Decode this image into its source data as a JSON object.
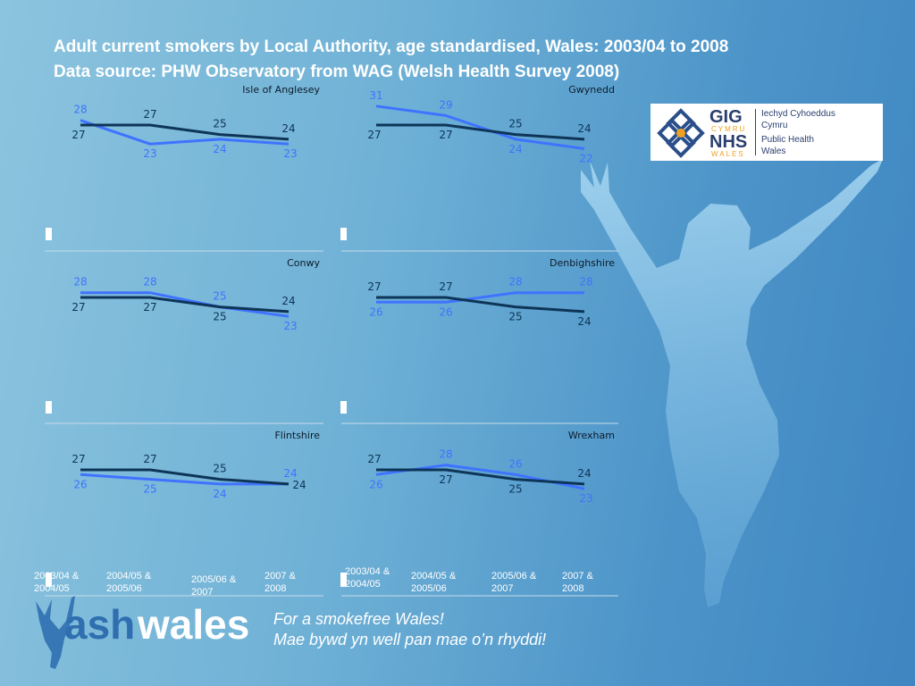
{
  "title_line1": "Adult current smokers by Local Authority, age standardised, Wales: 2003/04 to 2008",
  "title_line2": "Data source: PHW Observatory from WAG (Welsh Health Survey 2008)",
  "logo": {
    "gig": "GIG",
    "cymru": "CYMRU",
    "nhs": "NHS",
    "wales": "WALES",
    "line1": "Iechyd Cyhoeddus",
    "line2": "Cymru",
    "line3": "Public Health",
    "line4": "Wales"
  },
  "colors": {
    "series_a": "#3f73ff",
    "series_b": "#0e3557",
    "axis": "#c8dcea"
  },
  "x_labels_left": [
    [
      "2003/04 &",
      "2004/05"
    ],
    [
      "2004/05 &",
      "2005/06"
    ],
    [
      "2005/06 &",
      "2007"
    ],
    [
      "2007 &",
      "2008"
    ]
  ],
  "x_labels_right": [
    [
      "2003/04 &",
      "2004/05"
    ],
    [
      "2004/05 &",
      "2005/06"
    ],
    [
      "2005/06 &",
      "2007"
    ],
    [
      "2007 &",
      "2008"
    ]
  ],
  "brand": {
    "ash": "ash",
    "wales": "wales"
  },
  "tagline1": "For a smokefree Wales!",
  "tagline2": "Mae bywd yn well pan mae o’n rhyddi!",
  "chart_data": [
    {
      "type": "line",
      "title": "Isle of Anglesey",
      "categories": [
        "2003/04 & 2004/05",
        "2004/05 & 2005/06",
        "2005/06 & 2007",
        "2007 & 2008"
      ],
      "series": [
        {
          "values": [
            28,
            23,
            24,
            23
          ]
        },
        {
          "values": [
            27,
            27,
            25,
            24
          ]
        }
      ]
    },
    {
      "type": "line",
      "title": "Gwynedd",
      "categories": [
        "2003/04 & 2004/05",
        "2004/05 & 2005/06",
        "2005/06 & 2007",
        "2007 & 2008"
      ],
      "series": [
        {
          "values": [
            31,
            29,
            24,
            22
          ]
        },
        {
          "values": [
            27,
            27,
            25,
            24
          ]
        }
      ]
    },
    {
      "type": "line",
      "title": "Conwy",
      "categories": [
        "2003/04 & 2004/05",
        "2004/05 & 2005/06",
        "2005/06 & 2007",
        "2007 & 2008"
      ],
      "series": [
        {
          "values": [
            28,
            28,
            25,
            23
          ]
        },
        {
          "values": [
            27,
            27,
            25,
            24
          ]
        }
      ]
    },
    {
      "type": "line",
      "title": "Denbighshire",
      "categories": [
        "2003/04 & 2004/05",
        "2004/05 & 2005/06",
        "2005/06 & 2007",
        "2007 & 2008"
      ],
      "series": [
        {
          "values": [
            26,
            26,
            28,
            28
          ]
        },
        {
          "values": [
            27,
            27,
            25,
            24
          ]
        }
      ]
    },
    {
      "type": "line",
      "title": "Flintshire",
      "categories": [
        "2003/04 & 2004/05",
        "2004/05 & 2005/06",
        "2005/06 & 2007",
        "2007 & 2008"
      ],
      "series": [
        {
          "values": [
            26,
            25,
            24,
            24
          ]
        },
        {
          "values": [
            27,
            27,
            25,
            24
          ]
        }
      ]
    },
    {
      "type": "line",
      "title": "Wrexham",
      "categories": [
        "2003/04 & 2004/05",
        "2004/05 & 2005/06",
        "2005/06 & 2007",
        "2007 & 2008"
      ],
      "series": [
        {
          "values": [
            26,
            28,
            26,
            23
          ]
        },
        {
          "values": [
            27,
            27,
            25,
            24
          ]
        }
      ]
    }
  ]
}
